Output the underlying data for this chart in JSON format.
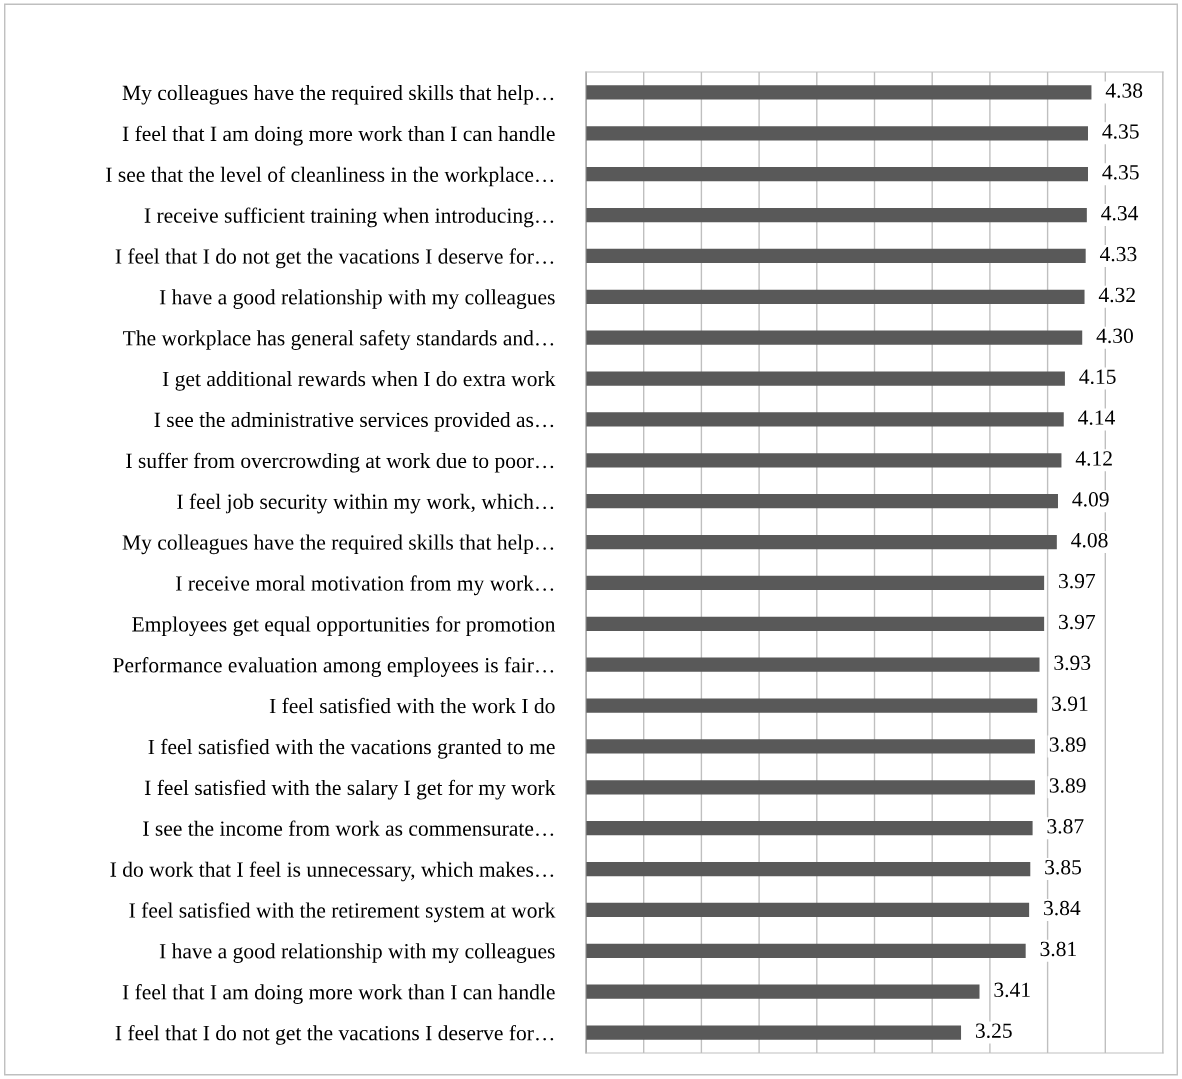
{
  "chart_data": {
    "type": "bar",
    "orientation": "horizontal",
    "categories": [
      "My colleagues have the required skills that help…",
      "I feel that I am doing more work than I can handle",
      "I see that the level of cleanliness in the workplace…",
      "I receive sufficient training when introducing…",
      "I feel that I do not get the vacations I deserve for…",
      "I have a good relationship with my colleagues",
      "The workplace has general safety standards and…",
      "I get additional rewards when I do extra work",
      "I see the administrative services provided as…",
      "I suffer from overcrowding at work due to poor…",
      "I feel job security within my work, which…",
      "My colleagues have the required skills that help…",
      "I receive moral motivation from my work…",
      "Employees get equal opportunities for promotion",
      "Performance evaluation among employees is fair…",
      "I feel satisfied with the work I do",
      "I feel satisfied with the vacations granted to me",
      "I feel satisfied with the salary I get for my work",
      "I see the income from work as commensurate…",
      "I do work that I feel is unnecessary, which makes…",
      "I feel satisfied with the retirement system at work",
      "I have a good relationship with my colleagues",
      "I feel that I am doing more work than I can handle",
      "I feel that I do not get the vacations I deserve for…"
    ],
    "values": [
      4.38,
      4.35,
      4.35,
      4.34,
      4.33,
      4.32,
      4.3,
      4.15,
      4.14,
      4.12,
      4.09,
      4.08,
      3.97,
      3.97,
      3.93,
      3.91,
      3.89,
      3.89,
      3.87,
      3.85,
      3.84,
      3.81,
      3.41,
      3.25
    ],
    "value_labels": [
      "4.38",
      "4.35",
      "4.35",
      "4.34",
      "4.33",
      "4.32",
      "4.30",
      "4.15",
      "4.14",
      "4.12",
      "4.09",
      "4.08",
      "3.97",
      "3.97",
      "3.93",
      "3.91",
      "3.89",
      "3.89",
      "3.87",
      "3.85",
      "3.84",
      "3.81",
      "3.41",
      "3.25"
    ],
    "color": "#595959",
    "xlim": [
      0,
      5
    ],
    "xticks": [
      {
        "value": 0,
        "label": null
      },
      {
        "value": 0.5,
        "label": null
      },
      {
        "value": 1,
        "label": null
      },
      {
        "value": 1.5,
        "label": null
      },
      {
        "value": 2,
        "label": null
      },
      {
        "value": 2.5,
        "label": null
      },
      {
        "value": 3,
        "label": null
      },
      {
        "value": 3.5,
        "label": null
      },
      {
        "value": 4,
        "label": null
      },
      {
        "value": 4.5,
        "label": null
      },
      {
        "value": 5,
        "label": null
      }
    ],
    "grid": "x",
    "tick_labels": "y",
    "legend": false
  }
}
